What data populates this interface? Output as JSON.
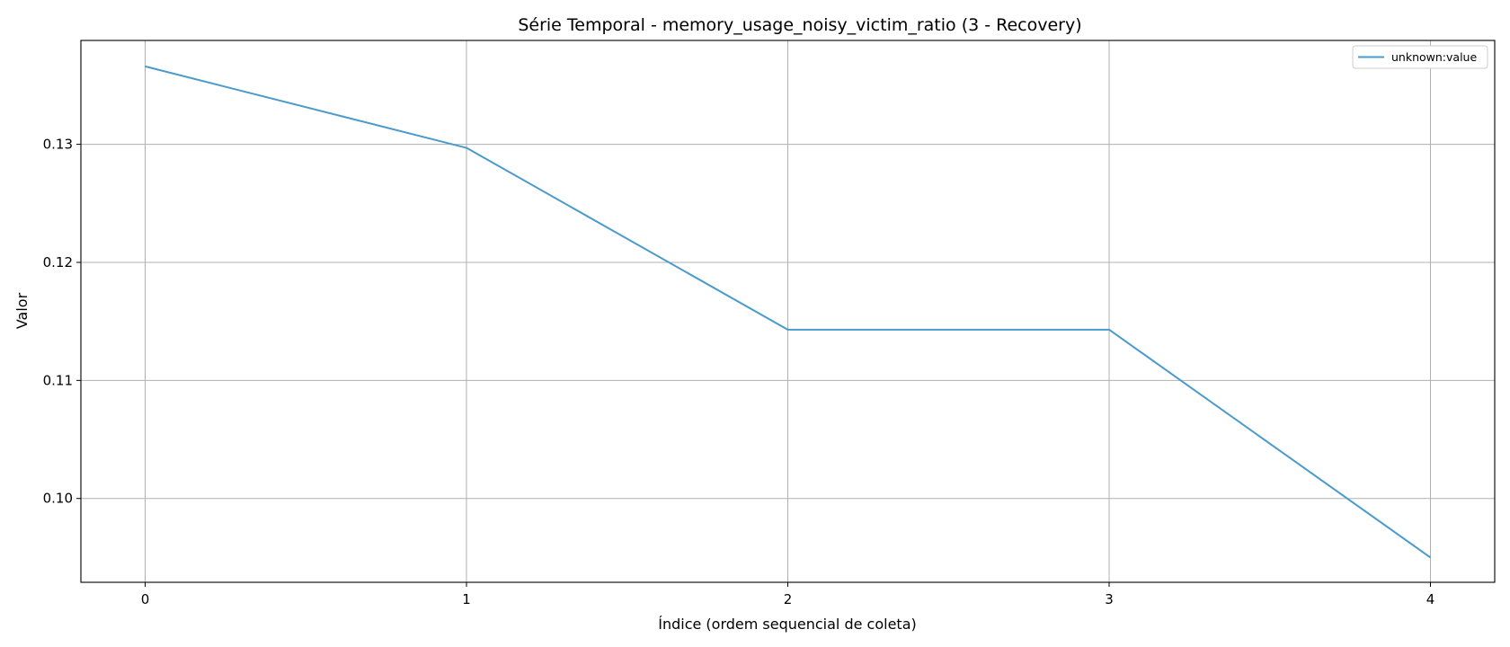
{
  "chart_data": {
    "type": "line",
    "title": "Série Temporal - memory_usage_noisy_victim_ratio (3 - Recovery)",
    "xlabel": "Índice (ordem sequencial de coleta)",
    "ylabel": "Valor",
    "x": [
      0,
      1,
      2,
      3,
      4
    ],
    "series": [
      {
        "name": "unknown:value",
        "color": "#4a9bcc",
        "values": [
          0.1366,
          0.1297,
          0.1143,
          0.1143,
          0.095
        ]
      }
    ],
    "xlim": [
      -0.2,
      4.2
    ],
    "ylim": [
      0.0929,
      0.1388
    ],
    "xticks": [
      0,
      1,
      2,
      3,
      4
    ],
    "xtick_labels": [
      "0",
      "1",
      "2",
      "3",
      "4"
    ],
    "yticks": [
      0.1,
      0.11,
      0.12,
      0.13
    ],
    "ytick_labels": [
      "0.10",
      "0.11",
      "0.12",
      "0.13"
    ],
    "grid": true,
    "legend": "upper-right"
  }
}
